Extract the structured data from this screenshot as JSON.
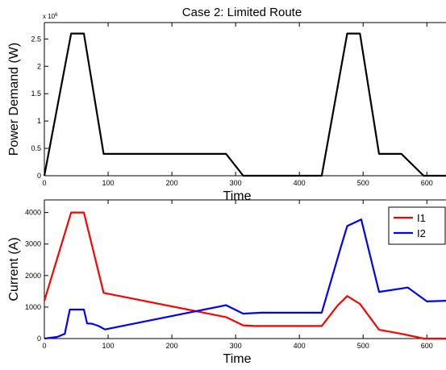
{
  "chart_data": [
    {
      "type": "line",
      "title": "Case 2: Limited Route",
      "xlabel": "Time",
      "ylabel": "Power Demand (W)",
      "exponent_label": "x 10",
      "exponent_power": "6",
      "xlim": [
        0,
        630
      ],
      "ylim": [
        0,
        2.8
      ],
      "xticks": [
        0,
        100,
        200,
        300,
        400,
        500,
        600
      ],
      "xtick_labels": [
        "0",
        "100",
        "200",
        "300",
        "400",
        "500",
        "600"
      ],
      "yticks": [
        0,
        0.5,
        1,
        1.5,
        2,
        2.5
      ],
      "ytick_labels": [
        "0",
        "0.5",
        "1",
        "1.5",
        "2",
        "2.5"
      ],
      "grid": false,
      "series": [
        {
          "color": "#000000",
          "x": [
            0,
            42,
            62,
            93,
            285,
            312,
            435,
            475,
            495,
            525,
            560,
            595,
            630
          ],
          "y": [
            0,
            2.6,
            2.6,
            0.4,
            0.4,
            0,
            0,
            2.6,
            2.6,
            0.4,
            0.4,
            0,
            0
          ]
        }
      ]
    },
    {
      "type": "line",
      "title": "",
      "xlabel": "Time",
      "ylabel": "Current (A)",
      "xlim": [
        0,
        630
      ],
      "ylim": [
        0,
        4400
      ],
      "xticks": [
        0,
        100,
        200,
        300,
        400,
        500,
        600
      ],
      "xtick_labels": [
        "0",
        "100",
        "200",
        "300",
        "400",
        "500",
        "600"
      ],
      "yticks": [
        0,
        1000,
        2000,
        3000,
        4000
      ],
      "ytick_labels": [
        "0",
        "1000",
        "2000",
        "3000",
        "4000"
      ],
      "grid": false,
      "legend_position": "top-right",
      "series": [
        {
          "name": "I1",
          "color": "#ff0000",
          "x": [
            0,
            30,
            42,
            62,
            93,
            285,
            312,
            330,
            435,
            460,
            475,
            495,
            525,
            560,
            595,
            630
          ],
          "y": [
            1200,
            3200,
            4000,
            4000,
            1450,
            680,
            420,
            400,
            400,
            1050,
            1350,
            1100,
            280,
            150,
            0,
            0
          ]
        },
        {
          "name": "I2",
          "color": "#0000ff",
          "x": [
            0,
            20,
            32,
            40,
            62,
            67,
            75,
            85,
            95,
            285,
            312,
            340,
            435,
            465,
            475,
            497,
            525,
            570,
            600,
            630
          ],
          "y": [
            0,
            50,
            150,
            920,
            920,
            480,
            470,
            400,
            290,
            1060,
            790,
            820,
            820,
            2900,
            3570,
            3780,
            1480,
            1620,
            1180,
            1200
          ]
        }
      ]
    }
  ]
}
